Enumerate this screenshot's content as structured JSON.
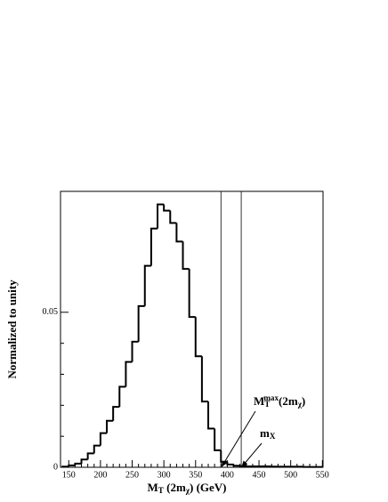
{
  "chart_data": {
    "type": "histogram",
    "xlabel": [
      {
        "t": "M"
      },
      {
        "t": "T",
        "pos": "sub"
      },
      {
        "t": " (2m"
      },
      {
        "t": "χ",
        "pos": "sub"
      },
      {
        "t": ") (GeV)"
      }
    ],
    "ylabel": "Normalized to unity",
    "bins": [
      140,
      150,
      160,
      170,
      180,
      190,
      200,
      210,
      220,
      230,
      240,
      250,
      260,
      270,
      280,
      290,
      300,
      310,
      320,
      330,
      340,
      350,
      360,
      370,
      380,
      390,
      400,
      410,
      420,
      430,
      440,
      450,
      460,
      470,
      480,
      490,
      500,
      510,
      520,
      530,
      540,
      550
    ],
    "values": [
      0.0002,
      0.0006,
      0.0012,
      0.0025,
      0.0045,
      0.007,
      0.011,
      0.015,
      0.0195,
      0.026,
      0.034,
      0.0405,
      0.052,
      0.065,
      0.077,
      0.0848,
      0.0828,
      0.0788,
      0.0728,
      0.064,
      0.0485,
      0.0358,
      0.0212,
      0.0125,
      0.0055,
      0.0018,
      0.0009,
      0.0005,
      0.0004,
      0.0003,
      0.0003,
      0.0003,
      0.0003,
      0.0002,
      0.0002,
      0.0002,
      0.0002,
      0.0002,
      0.0001,
      0.0001,
      0.0001
    ],
    "color": "#000000",
    "xlim": [
      137,
      551
    ],
    "ylim": [
      0,
      0.089
    ],
    "xticks": [
      150,
      200,
      250,
      300,
      350,
      400,
      450,
      500,
      550
    ],
    "yticks": [
      0,
      0.05
    ],
    "vlines": [
      {
        "x": 390,
        "label": [
          {
            "t": "M"
          },
          {
            "t": "T",
            "pos": "sub"
          },
          {
            "t": "max",
            "pos": "sup"
          },
          {
            "t": "(2m"
          },
          {
            "t": "χ",
            "pos": "sub"
          },
          {
            "t": ")"
          }
        ]
      },
      {
        "x": 422,
        "label": [
          {
            "t": "m"
          },
          {
            "t": "X",
            "pos": "sub"
          }
        ]
      }
    ]
  }
}
